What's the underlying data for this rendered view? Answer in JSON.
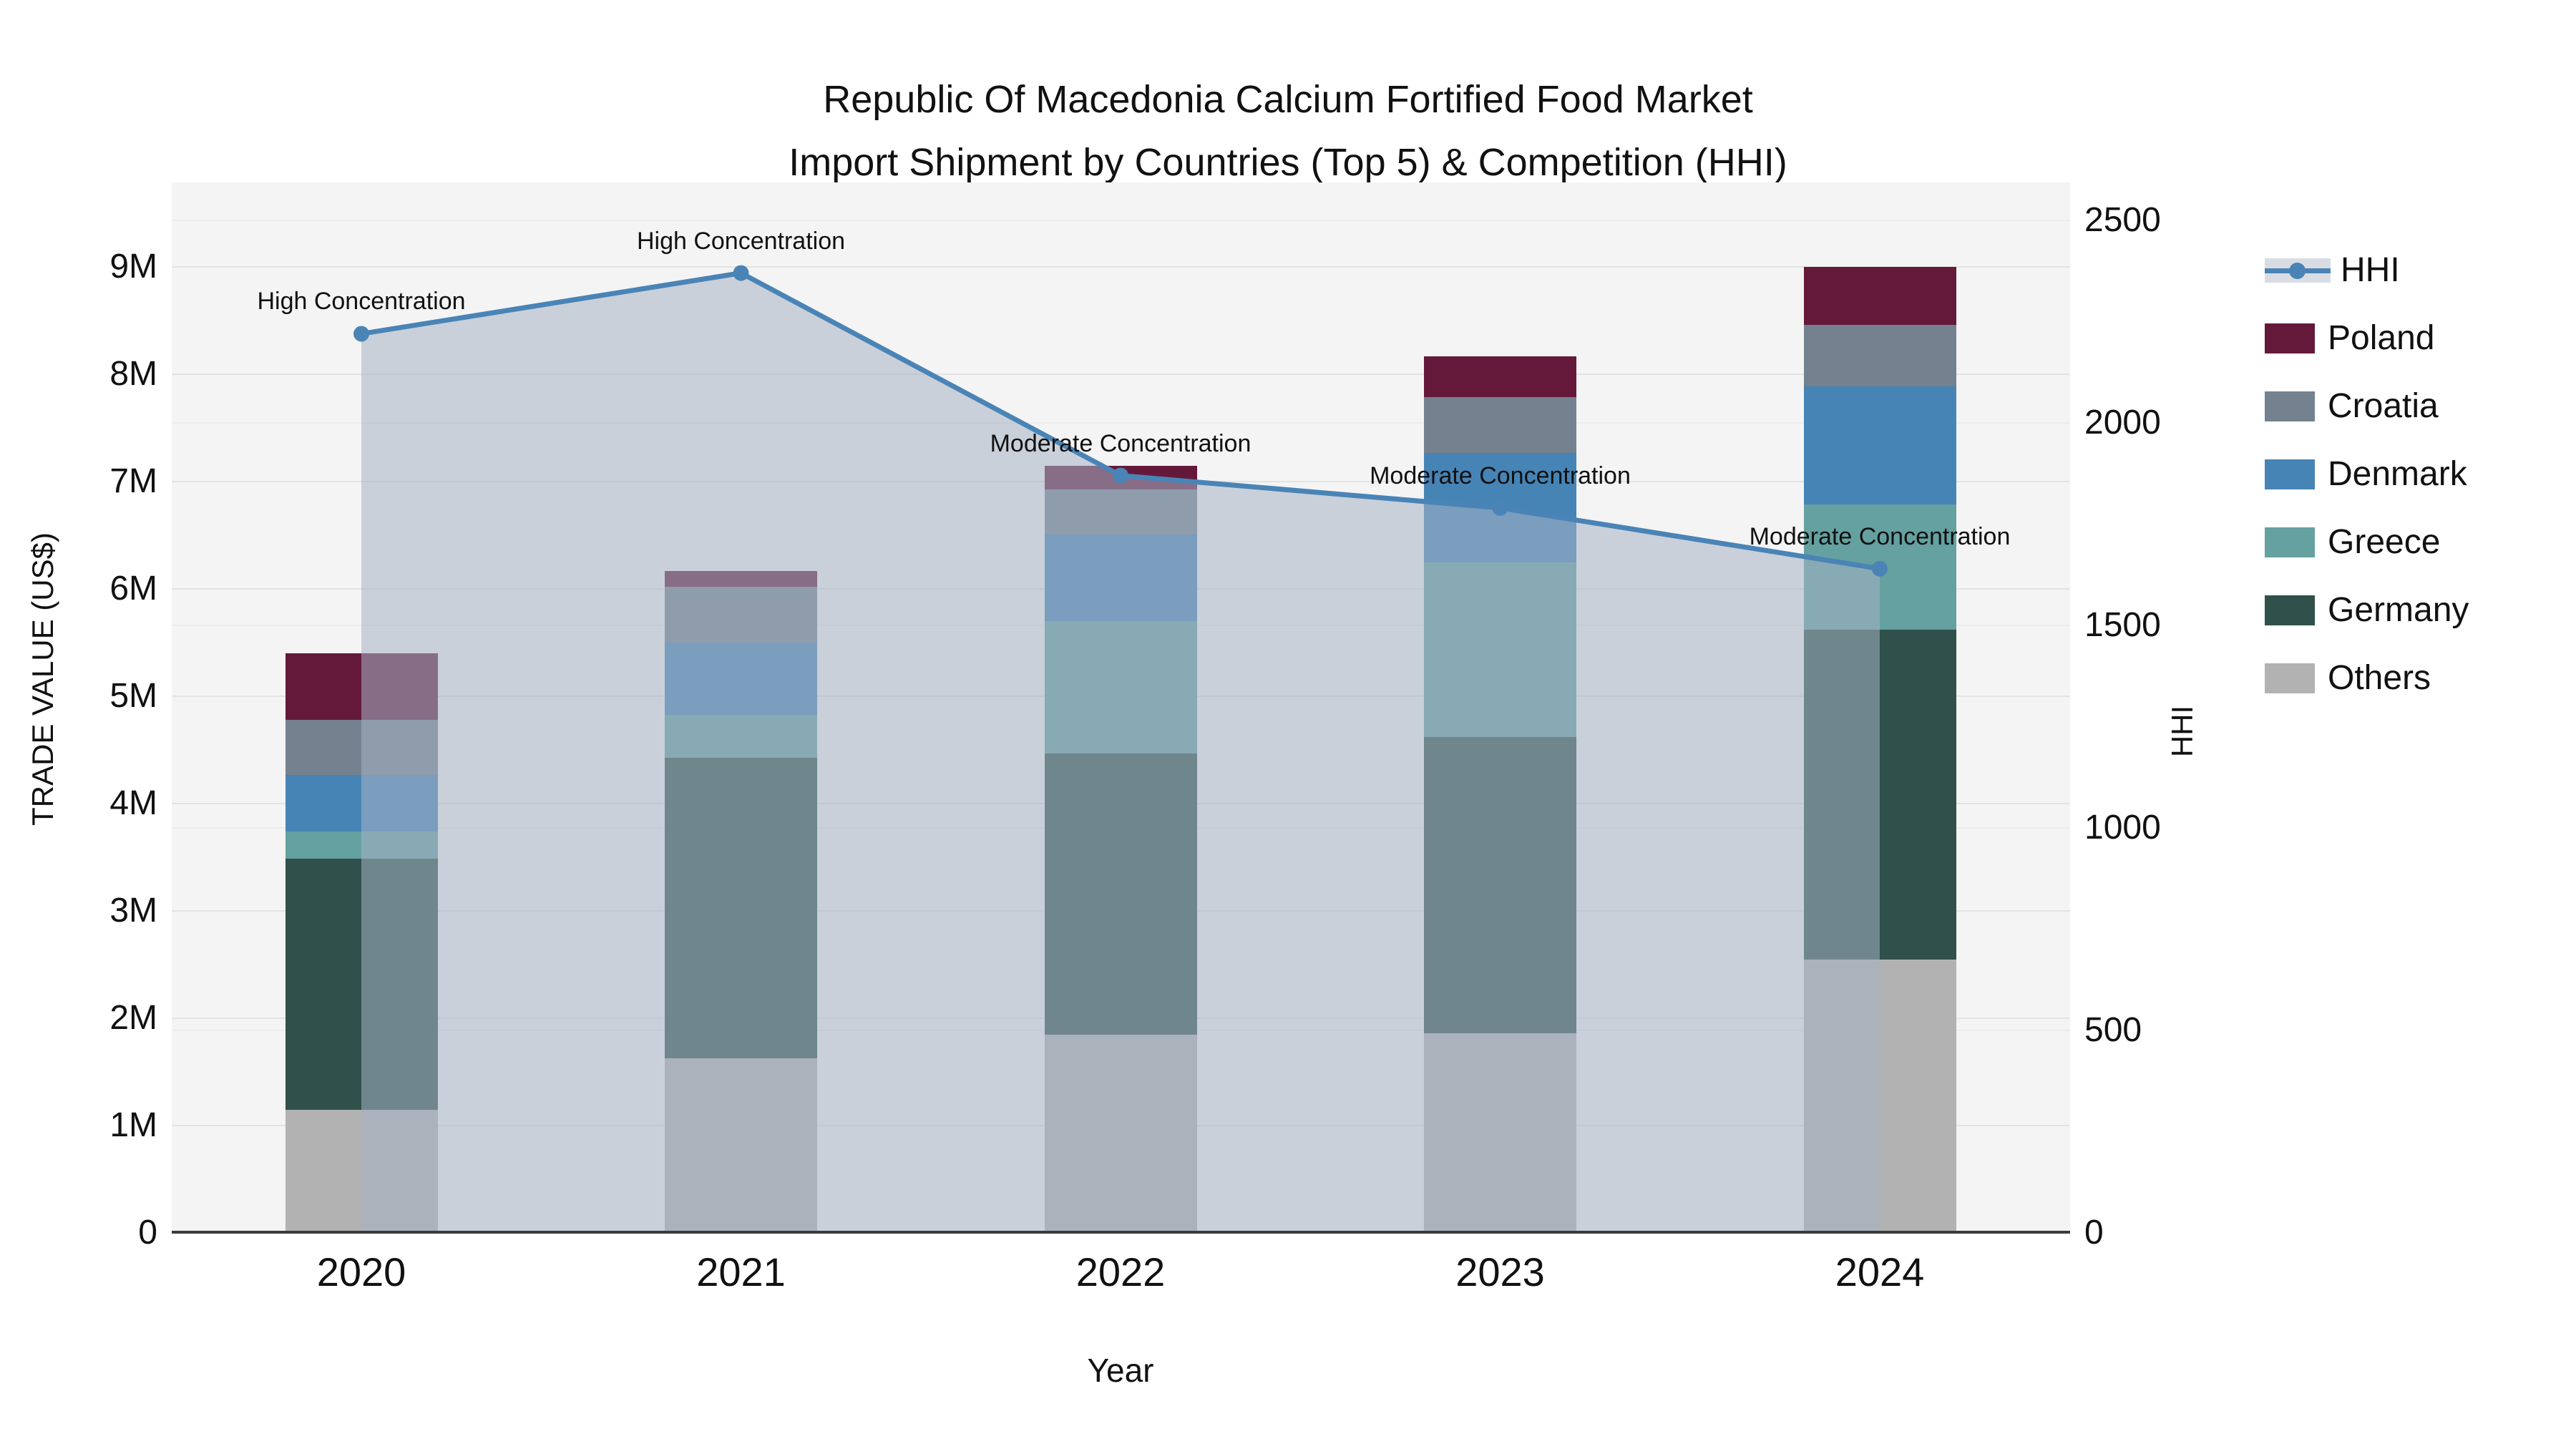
{
  "title": {
    "line1": "Republic Of Macedonia Calcium Fortified Food Market",
    "line2": "Import Shipment by Countries (Top 5) & Competition (HHI)"
  },
  "axes": {
    "left": {
      "title": "TRADE VALUE (US$)",
      "ticks": [
        "0",
        "1M",
        "2M",
        "3M",
        "4M",
        "5M",
        "6M",
        "7M",
        "8M",
        "9M"
      ]
    },
    "right": {
      "title": "HHI",
      "ticks": [
        "0",
        "500",
        "1000",
        "1500",
        "2000",
        "2500"
      ]
    },
    "x": {
      "title": "Year",
      "ticks": [
        "2020",
        "2021",
        "2022",
        "2023",
        "2024"
      ]
    }
  },
  "legend": {
    "items": [
      {
        "label": "HHI",
        "type": "line",
        "color": "#4a84b6"
      },
      {
        "label": "Poland",
        "type": "box",
        "color": "#65193a"
      },
      {
        "label": "Croatia",
        "type": "box",
        "color": "#74818f"
      },
      {
        "label": "Denmark",
        "type": "box",
        "color": "#4784b6"
      },
      {
        "label": "Greece",
        "type": "box",
        "color": "#64a1a0"
      },
      {
        "label": "Germany",
        "type": "box",
        "color": "#2f504b"
      },
      {
        "label": "Others",
        "type": "box",
        "color": "#b2b2b2"
      }
    ]
  },
  "chart_data": {
    "type": "bar",
    "subtype": "stacked-bars-with-line",
    "title": "Republic Of Macedonia Calcium Fortified Food Market Import Shipment by Countries (Top 5) & Competition (HHI)",
    "xlabel": "Year",
    "ylabel": "TRADE VALUE (US$)",
    "y2label": "HHI",
    "categories": [
      "2020",
      "2021",
      "2022",
      "2023",
      "2024"
    ],
    "units": "millions USD",
    "ylim": [
      0,
      9.79
    ],
    "y2lim": [
      0,
      2594
    ],
    "grid": true,
    "legend_position": "right",
    "stack_order_bottom_to_top": [
      "Others",
      "Germany",
      "Greece",
      "Denmark",
      "Croatia",
      "Poland"
    ],
    "series": [
      {
        "name": "Others",
        "color": "#b2b2b2",
        "values": [
          1.15,
          1.63,
          1.85,
          1.86,
          2.55
        ]
      },
      {
        "name": "Germany",
        "color": "#2f504b",
        "values": [
          2.34,
          2.8,
          2.62,
          2.76,
          3.07
        ]
      },
      {
        "name": "Greece",
        "color": "#64a1a0",
        "values": [
          0.25,
          0.4,
          1.23,
          1.63,
          1.17
        ]
      },
      {
        "name": "Denmark",
        "color": "#4784b6",
        "values": [
          0.53,
          0.67,
          0.81,
          1.02,
          1.1
        ]
      },
      {
        "name": "Croatia",
        "color": "#74818f",
        "values": [
          0.51,
          0.52,
          0.42,
          0.52,
          0.57
        ]
      },
      {
        "name": "Poland",
        "color": "#65193a",
        "values": [
          0.62,
          0.15,
          0.22,
          0.38,
          0.54
        ]
      }
    ],
    "bar_totals": [
      5.4,
      6.17,
      7.15,
      8.17,
      9.0
    ],
    "line_series": {
      "name": "HHI",
      "color": "#4a84b6",
      "area_fill": "#a5b2c4",
      "area_opacity": 0.55,
      "values": [
        2220,
        2370,
        1870,
        1790,
        1640
      ]
    },
    "annotations": [
      {
        "x": "2020",
        "text": "High Concentration"
      },
      {
        "x": "2021",
        "text": "High Concentration"
      },
      {
        "x": "2022",
        "text": "Moderate Concentration"
      },
      {
        "x": "2023",
        "text": "Moderate Concentration"
      },
      {
        "x": "2024",
        "text": "Moderate Concentration"
      }
    ]
  }
}
